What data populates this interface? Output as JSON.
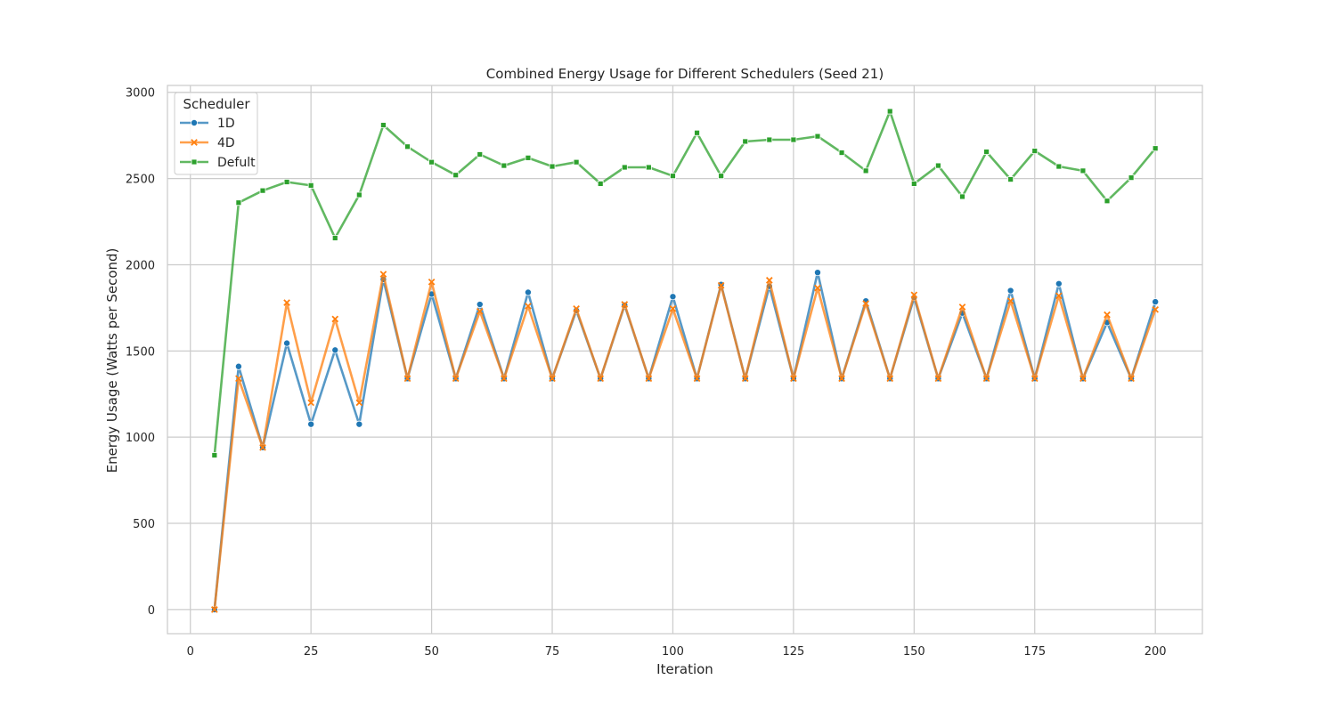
{
  "chart_data": {
    "type": "line",
    "title": "Combined Energy Usage for Different Schedulers (Seed 21)",
    "xlabel": "Iteration",
    "ylabel": "Energy Usage (Watts per Second)",
    "xlim": [
      -4.75,
      209.75
    ],
    "ylim": [
      -140,
      3040
    ],
    "xticks": [
      0,
      25,
      50,
      75,
      100,
      125,
      150,
      175,
      200
    ],
    "yticks": [
      0,
      500,
      1000,
      1500,
      2000,
      2500,
      3000
    ],
    "grid": true,
    "legend": {
      "title": "Scheduler",
      "placement": "upper-left"
    },
    "x": [
      5,
      10,
      15,
      20,
      25,
      30,
      35,
      40,
      45,
      50,
      55,
      60,
      65,
      70,
      75,
      80,
      85,
      90,
      95,
      100,
      105,
      110,
      115,
      120,
      125,
      130,
      135,
      140,
      145,
      150,
      155,
      160,
      165,
      170,
      175,
      180,
      185,
      190,
      195,
      200
    ],
    "series": [
      {
        "name": "1D",
        "color": "#1f77b4",
        "marker": "circle",
        "values": [
          0,
          1410,
          940,
          1545,
          1075,
          1505,
          1075,
          1915,
          1340,
          1830,
          1340,
          1770,
          1340,
          1840,
          1340,
          1735,
          1340,
          1765,
          1340,
          1815,
          1340,
          1885,
          1340,
          1875,
          1340,
          1955,
          1340,
          1790,
          1340,
          1810,
          1340,
          1720,
          1340,
          1850,
          1340,
          1890,
          1340,
          1665,
          1340,
          1785
        ]
      },
      {
        "name": "4D",
        "color": "#ff7f0e",
        "marker": "x",
        "values": [
          0,
          1340,
          940,
          1780,
          1200,
          1685,
          1200,
          1945,
          1340,
          1900,
          1340,
          1730,
          1340,
          1760,
          1340,
          1745,
          1340,
          1770,
          1340,
          1745,
          1340,
          1880,
          1340,
          1910,
          1340,
          1865,
          1340,
          1775,
          1340,
          1825,
          1340,
          1755,
          1340,
          1790,
          1340,
          1820,
          1340,
          1710,
          1340,
          1740
        ]
      },
      {
        "name": "Defult",
        "color": "#2ca02c",
        "marker": "square",
        "values": [
          895,
          2360,
          2430,
          2480,
          2460,
          2155,
          2405,
          2810,
          2685,
          2595,
          2520,
          2640,
          2575,
          2620,
          2570,
          2595,
          2470,
          2565,
          2565,
          2515,
          2765,
          2515,
          2715,
          2725,
          2725,
          2745,
          2650,
          2545,
          2890,
          2470,
          2575,
          2395,
          2655,
          2495,
          2660,
          2570,
          2545,
          2370,
          2505,
          2675
        ]
      }
    ]
  }
}
